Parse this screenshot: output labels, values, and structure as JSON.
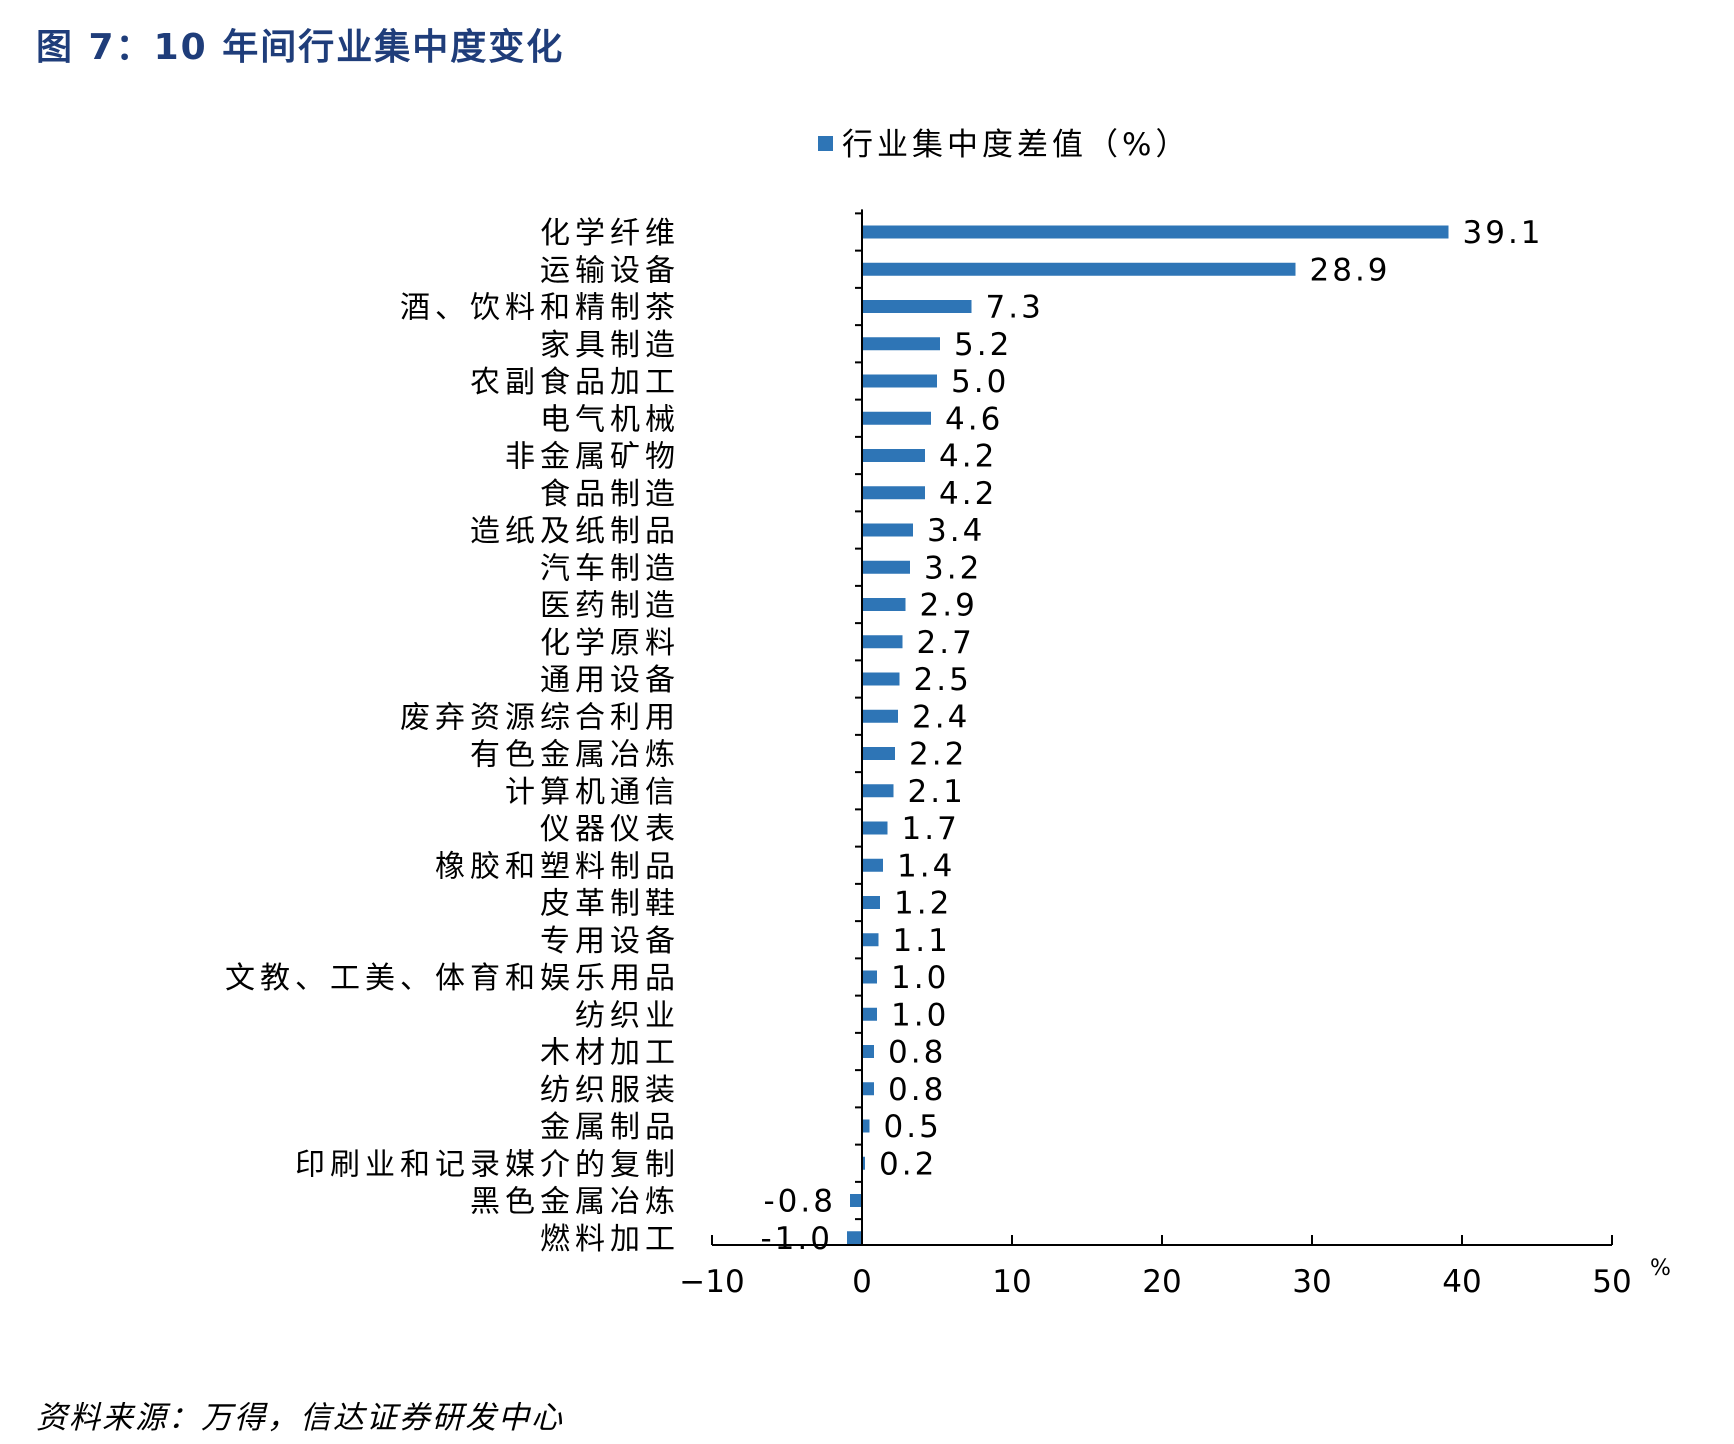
{
  "figure_title": "图 7：10 年间行业集中度变化",
  "source": "资料来源：万得，信达证券研发中心",
  "chart_data": {
    "type": "bar",
    "orientation": "horizontal",
    "title": "",
    "xlabel": "",
    "ylabel": "",
    "x_unit": "%",
    "xlim": [
      -10,
      50
    ],
    "x_ticks": [
      "−10",
      "0",
      "10",
      "20",
      "30",
      "40",
      "50"
    ],
    "legend_position": "top",
    "grid": false,
    "bar_color": "#2e75b6",
    "series": [
      {
        "name": "行业集中度差值（%）",
        "categories": [
          "化学纤维",
          "运输设备",
          "酒、饮料和精制茶",
          "家具制造",
          "农副食品加工",
          "电气机械",
          "非金属矿物",
          "食品制造",
          "造纸及纸制品",
          "汽车制造",
          "医药制造",
          "化学原料",
          "通用设备",
          "废弃资源综合利用",
          "有色金属冶炼",
          "计算机通信",
          "仪器仪表",
          "橡胶和塑料制品",
          "皮革制鞋",
          "专用设备",
          "文教、工美、体育和娱乐用品",
          "纺织业",
          "木材加工",
          "纺织服装",
          "金属制品",
          "印刷业和记录媒介的复制",
          "黑色金属冶炼",
          "燃料加工"
        ],
        "values": [
          39.1,
          28.9,
          7.3,
          5.2,
          5.0,
          4.6,
          4.2,
          4.2,
          3.4,
          3.2,
          2.9,
          2.7,
          2.5,
          2.4,
          2.2,
          2.1,
          1.7,
          1.4,
          1.2,
          1.1,
          1.0,
          1.0,
          0.8,
          0.8,
          0.5,
          0.2,
          -0.8,
          -1.0
        ],
        "value_labels": [
          "39.1",
          "28.9",
          "7.3",
          "5.2",
          "5.0",
          "4.6",
          "4.2",
          "4.2",
          "3.4",
          "3.2",
          "2.9",
          "2.7",
          "2.5",
          "2.4",
          "2.2",
          "2.1",
          "1.7",
          "1.4",
          "1.2",
          "1.1",
          "1.0",
          "1.0",
          "0.8",
          "0.8",
          "0.5",
          "0.2",
          "-0.8",
          "-1.0"
        ]
      }
    ]
  }
}
